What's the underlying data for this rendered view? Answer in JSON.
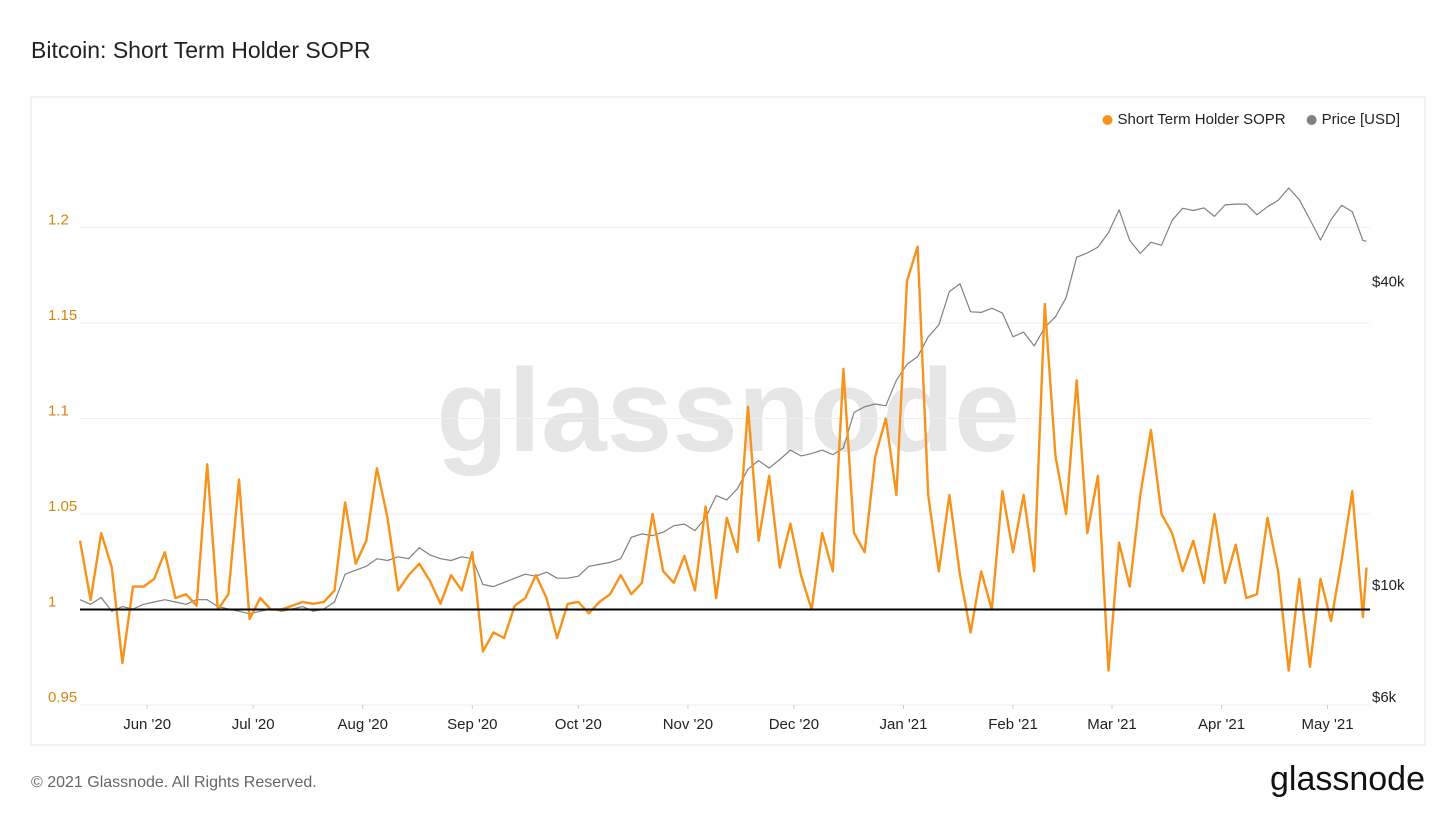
{
  "chart_data": {
    "type": "line",
    "title": "Bitcoin: Short Term Holder SOPR",
    "watermark": "glassnode",
    "footer": "© 2021 Glassnode. All Rights Reserved.",
    "logo": "glassnode",
    "legend": "top-right",
    "grid": true,
    "baseline": 1,
    "xlim": [
      0,
      365
    ],
    "xticks": [
      {
        "value": 19,
        "label": "Jun '20"
      },
      {
        "value": 49,
        "label": "Jul '20"
      },
      {
        "value": 80,
        "label": "Aug '20"
      },
      {
        "value": 111,
        "label": "Sep '20"
      },
      {
        "value": 141,
        "label": "Oct '20"
      },
      {
        "value": 172,
        "label": "Nov '20"
      },
      {
        "value": 202,
        "label": "Dec '20"
      },
      {
        "value": 233,
        "label": "Jan '21"
      },
      {
        "value": 264,
        "label": "Feb '21"
      },
      {
        "value": 292,
        "label": "Mar '21"
      },
      {
        "value": 323,
        "label": "Apr '21"
      },
      {
        "value": 353,
        "label": "May '21"
      }
    ],
    "ylim": [
      0.95,
      1.25
    ],
    "yticks": [
      0.95,
      1,
      1.05,
      1.1,
      1.15,
      1.2
    ],
    "y2lim": [
      6000,
      82000
    ],
    "y2log": true,
    "y2ticks": [
      {
        "value": 6000,
        "label": "$6k"
      },
      {
        "value": 10000,
        "label": "$10k"
      },
      {
        "value": 40000,
        "label": "$40k"
      }
    ],
    "x": [
      0,
      3,
      6,
      9,
      12,
      15,
      18,
      21,
      24,
      27,
      30,
      33,
      36,
      39,
      42,
      45,
      48,
      51,
      54,
      57,
      60,
      63,
      66,
      69,
      72,
      75,
      78,
      81,
      84,
      87,
      90,
      93,
      96,
      99,
      102,
      105,
      108,
      111,
      114,
      117,
      120,
      123,
      126,
      129,
      132,
      135,
      138,
      141,
      144,
      147,
      150,
      153,
      156,
      159,
      162,
      165,
      168,
      171,
      174,
      177,
      180,
      183,
      186,
      189,
      192,
      195,
      198,
      201,
      204,
      207,
      210,
      213,
      216,
      219,
      222,
      225,
      228,
      231,
      234,
      237,
      240,
      243,
      246,
      249,
      252,
      255,
      258,
      261,
      264,
      267,
      270,
      273,
      276,
      279,
      282,
      285,
      288,
      291,
      294,
      297,
      300,
      303,
      306,
      309,
      312,
      315,
      318,
      321,
      324,
      327,
      330,
      333,
      336,
      339,
      342,
      345,
      348,
      351,
      354,
      357,
      360,
      363,
      364
    ],
    "series": [
      {
        "name": "Short Term Holder SOPR",
        "color": "#f7931a",
        "axis": "y",
        "values": [
          1.036,
          1.005,
          1.04,
          1.022,
          0.972,
          1.012,
          1.012,
          1.016,
          1.03,
          1.006,
          1.008,
          1.002,
          1.076,
          1.0,
          1.008,
          1.068,
          0.995,
          1.006,
          1.0,
          1.0,
          1.002,
          1.004,
          1.003,
          1.004,
          1.01,
          1.056,
          1.024,
          1.036,
          1.074,
          1.048,
          1.01,
          1.018,
          1.024,
          1.015,
          1.003,
          1.018,
          1.01,
          1.03,
          0.978,
          0.988,
          0.985,
          1.002,
          1.006,
          1.018,
          1.006,
          0.985,
          1.003,
          1.004,
          0.998,
          1.004,
          1.008,
          1.018,
          1.008,
          1.014,
          1.05,
          1.02,
          1.014,
          1.028,
          1.01,
          1.054,
          1.006,
          1.048,
          1.03,
          1.106,
          1.036,
          1.07,
          1.022,
          1.045,
          1.018,
          1.0,
          1.04,
          1.02,
          1.126,
          1.04,
          1.03,
          1.08,
          1.1,
          1.06,
          1.172,
          1.19,
          1.06,
          1.02,
          1.06,
          1.018,
          0.988,
          1.02,
          1.0,
          1.062,
          1.03,
          1.06,
          1.02,
          1.16,
          1.08,
          1.05,
          1.12,
          1.04,
          1.07,
          0.968,
          1.035,
          1.012,
          1.06,
          1.094,
          1.05,
          1.04,
          1.02,
          1.036,
          1.014,
          1.05,
          1.014,
          1.034,
          1.006,
          1.008,
          1.048,
          1.02,
          0.968,
          1.016,
          0.97,
          1.016,
          0.994,
          1.026,
          1.062,
          0.996,
          1.022
        ]
      },
      {
        "name": "Price [USD]",
        "color": "#808080",
        "axis": "y2",
        "values": [
          9700,
          9500,
          9800,
          9200,
          9400,
          9300,
          9500,
          9600,
          9700,
          9600,
          9500,
          9700,
          9700,
          9400,
          9300,
          9200,
          9100,
          9200,
          9300,
          9200,
          9300,
          9400,
          9200,
          9300,
          9600,
          10900,
          11100,
          11300,
          11700,
          11600,
          11800,
          11700,
          12300,
          11900,
          11700,
          11600,
          11800,
          11700,
          10400,
          10300,
          10500,
          10700,
          10900,
          10800,
          11000,
          10700,
          10700,
          10800,
          11300,
          11400,
          11500,
          11700,
          12900,
          13100,
          13000,
          13200,
          13600,
          13700,
          13300,
          14100,
          15600,
          15300,
          16100,
          17600,
          18300,
          17700,
          18400,
          19200,
          18700,
          18900,
          19200,
          18800,
          19400,
          22800,
          23400,
          23700,
          23500,
          26400,
          28400,
          29400,
          32200,
          34000,
          39600,
          41000,
          36100,
          36000,
          36700,
          35900,
          32200,
          32900,
          30900,
          33600,
          35300,
          38500,
          46300,
          47200,
          48500,
          51800,
          57500,
          50000,
          47100,
          49600,
          48900,
          54800,
          57900,
          57300,
          58000,
          55800,
          58800,
          59000,
          59000,
          56200,
          58300,
          60000,
          63500,
          60200,
          55000,
          50100,
          55000,
          58700,
          57000,
          50000,
          49800
        ]
      }
    ]
  }
}
